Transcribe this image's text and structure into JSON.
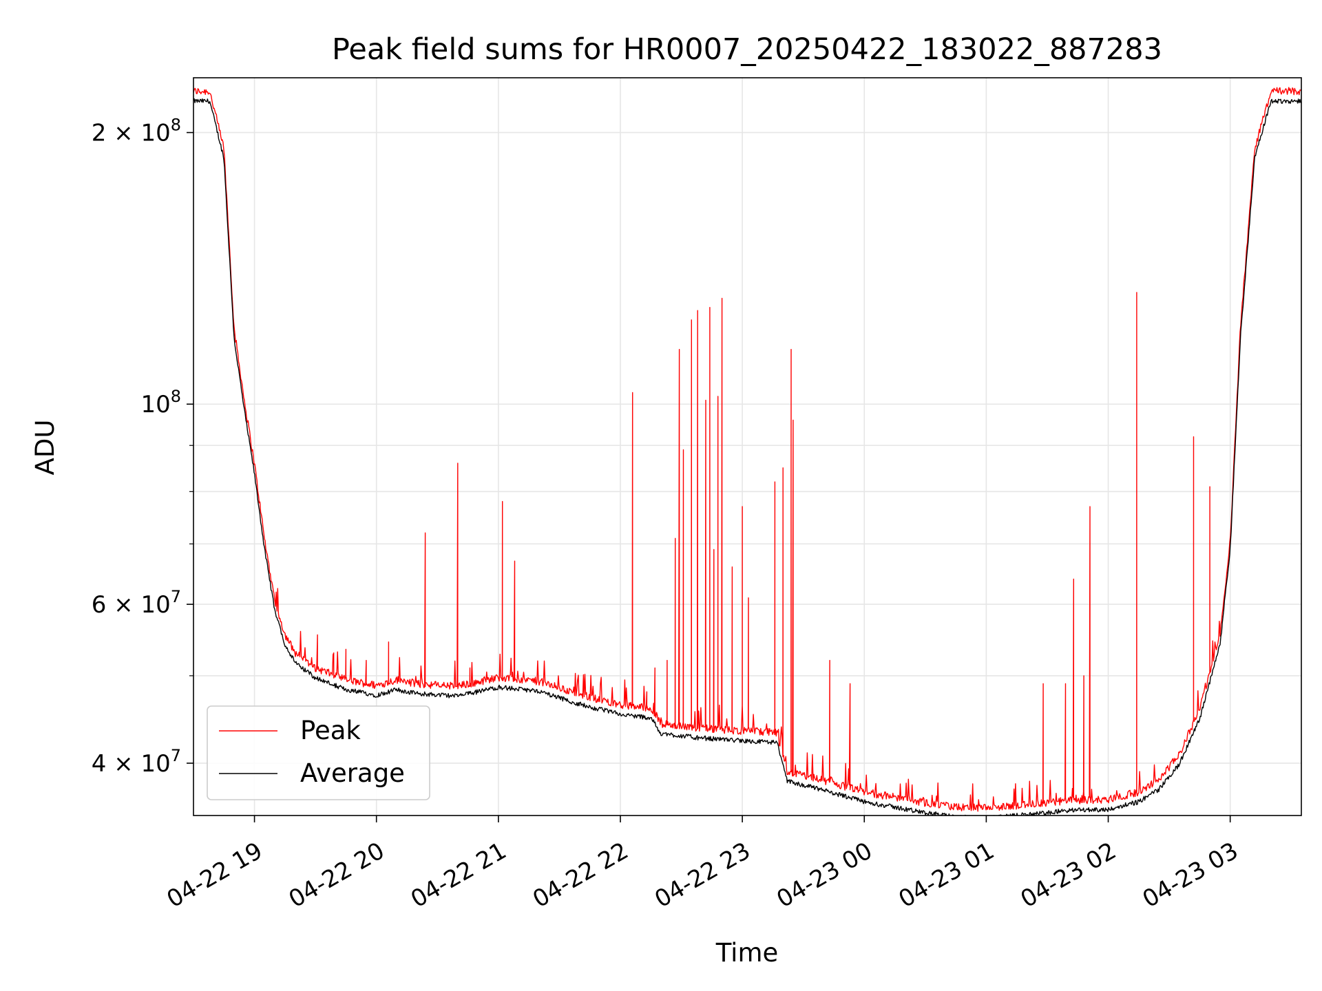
{
  "chart_data": {
    "type": "line",
    "title": "Peak field sums for HR0007_20250422_183022_887283",
    "xlabel": "Time",
    "ylabel": "ADU",
    "y_scale": "log",
    "ylim": [
      35000000,
      230000000
    ],
    "xlim": [
      "2025-04-22 18:30",
      "2025-04-23 03:35"
    ],
    "grid": true,
    "legend_position": "lower-left",
    "x_ticks": [
      {
        "t": "2025-04-22 19:00",
        "label": "04-22 19"
      },
      {
        "t": "2025-04-22 20:00",
        "label": "04-22 20"
      },
      {
        "t": "2025-04-22 21:00",
        "label": "04-22 21"
      },
      {
        "t": "2025-04-22 22:00",
        "label": "04-22 22"
      },
      {
        "t": "2025-04-22 23:00",
        "label": "04-22 23"
      },
      {
        "t": "2025-04-23 00:00",
        "label": "04-23 00"
      },
      {
        "t": "2025-04-23 01:00",
        "label": "04-23 01"
      },
      {
        "t": "2025-04-23 02:00",
        "label": "04-23 02"
      },
      {
        "t": "2025-04-23 03:00",
        "label": "04-23 03"
      }
    ],
    "y_major_ticks": [
      {
        "value": 40000000,
        "base": "4 × 10",
        "exp": "7"
      },
      {
        "value": 60000000,
        "base": "6 × 10",
        "exp": "7"
      },
      {
        "value": 100000000,
        "base": "10",
        "exp": "8"
      },
      {
        "value": 200000000,
        "base": "2 × 10",
        "exp": "8"
      }
    ],
    "y_minor_gridlines": [
      50000000,
      70000000,
      80000000,
      90000000
    ],
    "series": [
      {
        "name": "Peak",
        "color": "#ff0000",
        "baseline": [
          [
            "2025-04-22 18:30",
            220000000
          ],
          [
            "2025-04-22 18:38",
            220000000
          ],
          [
            "2025-04-22 18:45",
            190000000
          ],
          [
            "2025-04-22 18:50",
            120000000
          ],
          [
            "2025-04-22 18:55",
            100000000
          ],
          [
            "2025-04-22 19:00",
            85000000
          ],
          [
            "2025-04-22 19:05",
            70000000
          ],
          [
            "2025-04-22 19:10",
            60000000
          ],
          [
            "2025-04-22 19:15",
            55000000
          ],
          [
            "2025-04-22 19:20",
            52500000
          ],
          [
            "2025-04-22 19:30",
            50500000
          ],
          [
            "2025-04-22 19:45",
            49000000
          ],
          [
            "2025-04-22 20:00",
            48300000
          ],
          [
            "2025-04-22 20:10",
            49000000
          ],
          [
            "2025-04-22 20:20",
            48500000
          ],
          [
            "2025-04-22 20:40",
            48200000
          ],
          [
            "2025-04-22 21:00",
            49300000
          ],
          [
            "2025-04-22 21:20",
            48800000
          ],
          [
            "2025-04-22 21:40",
            47200000
          ],
          [
            "2025-04-22 22:00",
            46000000
          ],
          [
            "2025-04-22 22:15",
            45600000
          ],
          [
            "2025-04-22 22:20",
            43800000
          ],
          [
            "2025-04-22 22:40",
            43300000
          ],
          [
            "2025-04-22 23:00",
            43000000
          ],
          [
            "2025-04-22 23:17",
            42800000
          ],
          [
            "2025-04-22 23:22",
            38800000
          ],
          [
            "2025-04-22 23:40",
            37900000
          ],
          [
            "2025-04-23 00:00",
            36800000
          ],
          [
            "2025-04-23 00:30",
            35800000
          ],
          [
            "2025-04-23 00:45",
            35400000
          ],
          [
            "2025-04-23 01:00",
            35300000
          ],
          [
            "2025-04-23 01:20",
            35600000
          ],
          [
            "2025-04-23 01:40",
            36000000
          ],
          [
            "2025-04-23 02:00",
            36100000
          ],
          [
            "2025-04-23 02:15",
            36800000
          ],
          [
            "2025-04-23 02:25",
            38000000
          ],
          [
            "2025-04-23 02:35",
            40500000
          ],
          [
            "2025-04-23 02:45",
            45500000
          ],
          [
            "2025-04-23 02:55",
            55000000
          ],
          [
            "2025-04-23 03:00",
            70000000
          ],
          [
            "2025-04-23 03:05",
            120000000
          ],
          [
            "2025-04-23 03:12",
            190000000
          ],
          [
            "2025-04-23 03:20",
            220000000
          ],
          [
            "2025-04-23 03:35",
            220000000
          ]
        ],
        "spikes": [
          [
            "2025-04-22 19:31",
            55500000
          ],
          [
            "2025-04-22 19:39",
            53000000
          ],
          [
            "2025-04-22 19:45",
            53500000
          ],
          [
            "2025-04-22 19:55",
            52000000
          ],
          [
            "2025-04-22 20:06",
            54500000
          ],
          [
            "2025-04-22 20:24",
            72000000
          ],
          [
            "2025-04-22 20:40",
            86000000
          ],
          [
            "2025-04-22 20:46",
            51000000
          ],
          [
            "2025-04-22 21:02",
            78000000
          ],
          [
            "2025-04-22 21:08",
            67000000
          ],
          [
            "2025-04-22 22:06",
            103000000
          ],
          [
            "2025-04-22 22:13",
            48000000
          ],
          [
            "2025-04-22 22:17",
            51000000
          ],
          [
            "2025-04-22 22:23",
            52000000
          ],
          [
            "2025-04-22 22:27",
            71000000
          ],
          [
            "2025-04-22 22:29",
            115000000
          ],
          [
            "2025-04-22 22:31",
            89000000
          ],
          [
            "2025-04-22 22:35",
            124000000
          ],
          [
            "2025-04-22 22:38",
            127000000
          ],
          [
            "2025-04-22 22:42",
            101000000
          ],
          [
            "2025-04-22 22:44",
            128000000
          ],
          [
            "2025-04-22 22:46",
            69000000
          ],
          [
            "2025-04-22 22:48",
            102000000
          ],
          [
            "2025-04-22 22:50",
            131000000
          ],
          [
            "2025-04-22 22:55",
            66000000
          ],
          [
            "2025-04-22 23:00",
            77000000
          ],
          [
            "2025-04-22 23:03",
            61000000
          ],
          [
            "2025-04-22 23:16",
            82000000
          ],
          [
            "2025-04-22 23:20",
            85000000
          ],
          [
            "2025-04-22 23:24",
            115000000
          ],
          [
            "2025-04-22 23:25",
            96000000
          ],
          [
            "2025-04-22 23:43",
            52000000
          ],
          [
            "2025-04-22 23:53",
            49000000
          ],
          [
            "2025-04-23 01:28",
            49000000
          ],
          [
            "2025-04-23 01:39",
            49000000
          ],
          [
            "2025-04-23 01:43",
            64000000
          ],
          [
            "2025-04-23 01:48",
            50000000
          ],
          [
            "2025-04-23 01:51",
            77000000
          ],
          [
            "2025-04-23 02:14",
            133000000
          ],
          [
            "2025-04-23 02:42",
            92000000
          ],
          [
            "2025-04-23 02:50",
            81000000
          ]
        ]
      },
      {
        "name": "Average",
        "color": "#000000",
        "offset_factor": 0.985
      }
    ]
  }
}
